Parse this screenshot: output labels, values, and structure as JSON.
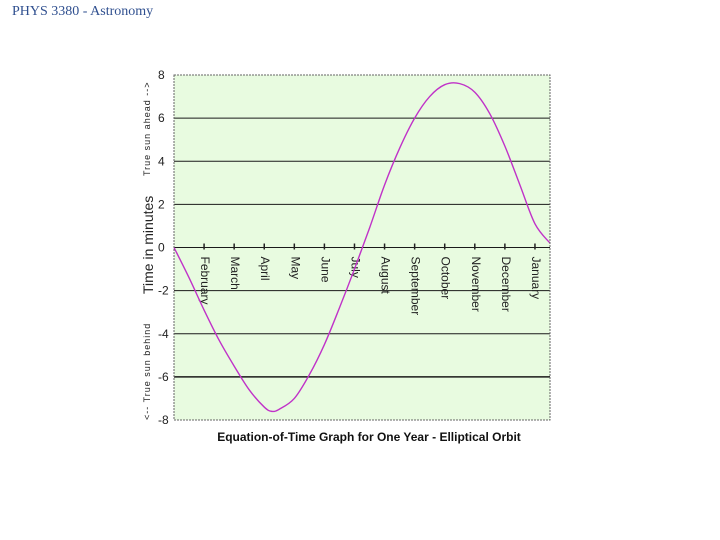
{
  "header": {
    "title": "PHYS 3380 - Astronomy"
  },
  "chart_data": {
    "type": "line",
    "title": "Equation-of-Time Graph for One Year - Elliptical Orbit",
    "xlabel": "",
    "ylabel": "Time in minutes",
    "ylabel_upper": "True sun ahead -->",
    "ylabel_lower": "<-- True sun behind",
    "ylim": [
      -8,
      8
    ],
    "yticks": [
      8,
      6,
      4,
      2,
      0,
      -2,
      -4,
      -6,
      -8
    ],
    "xlim": [
      0,
      12.5
    ],
    "months": [
      "February",
      "March",
      "April",
      "May",
      "June",
      "July",
      "August",
      "September",
      "October",
      "November",
      "December",
      "January"
    ],
    "month_positions": [
      1,
      2,
      3,
      4,
      5,
      6,
      7,
      8,
      9,
      10,
      11,
      12
    ],
    "grid": true,
    "background_color": "#e8fbe0",
    "line_color": "#c032c8",
    "series": [
      {
        "x": [
          0,
          0.5,
          1,
          1.5,
          2,
          2.5,
          3,
          3.25,
          3.5,
          4,
          4.5,
          5,
          5.5,
          6,
          6.5,
          7,
          7.5,
          8,
          8.5,
          9,
          9.5,
          10,
          10.5,
          11,
          11.5,
          12,
          12.5
        ],
        "y": [
          0,
          -1.4,
          -2.9,
          -4.3,
          -5.5,
          -6.6,
          -7.4,
          -7.6,
          -7.5,
          -7.0,
          -5.9,
          -4.5,
          -2.8,
          -1.0,
          0.9,
          2.9,
          4.6,
          6.0,
          7.0,
          7.55,
          7.6,
          7.2,
          6.2,
          4.7,
          2.9,
          1.1,
          0.2
        ]
      }
    ]
  }
}
